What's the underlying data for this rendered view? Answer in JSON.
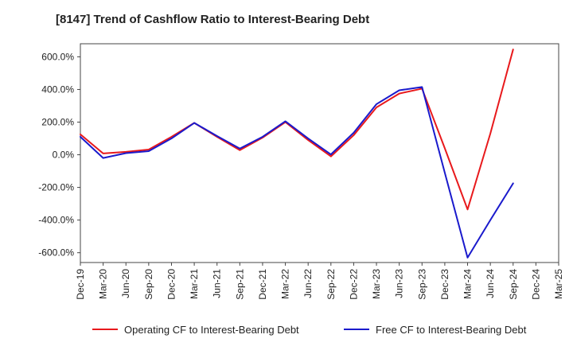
{
  "chart_data": {
    "type": "line",
    "title": "[8147]  Trend of Cashflow Ratio to Interest-Bearing Debt",
    "xlabel": "",
    "ylabel": "",
    "x": [
      "Dec-19",
      "Mar-20",
      "Jun-20",
      "Sep-20",
      "Dec-20",
      "Mar-21",
      "Jun-21",
      "Sep-21",
      "Dec-21",
      "Mar-22",
      "Jun-22",
      "Sep-22",
      "Dec-22",
      "Mar-23",
      "Jun-23",
      "Sep-23",
      "Dec-23",
      "Mar-24",
      "Jun-24",
      "Sep-24",
      "Dec-24",
      "Mar-25"
    ],
    "x_ticks": [
      "Dec-19",
      "Mar-20",
      "Jun-20",
      "Sep-20",
      "Dec-20",
      "Mar-21",
      "Jun-21",
      "Sep-21",
      "Dec-21",
      "Mar-22",
      "Jun-22",
      "Sep-22",
      "Dec-22",
      "Mar-23",
      "Jun-23",
      "Sep-23",
      "Dec-23",
      "Mar-24",
      "Jun-24",
      "Sep-24",
      "Dec-24",
      "Mar-25"
    ],
    "y_ticks": [
      600,
      400,
      200,
      0,
      -200,
      -400,
      -600
    ],
    "y_tick_labels": [
      "600.0%",
      "400.0%",
      "200.0%",
      "0.0%",
      "-200.0%",
      "-400.0%",
      "-600.0%"
    ],
    "ylim": [
      -660,
      680
    ],
    "grid": true,
    "legend_position": "bottom",
    "series": [
      {
        "name": "Operating CF to Interest-Bearing Debt",
        "color": "#e8191c",
        "values": [
          125,
          8,
          18,
          32,
          110,
          195,
          110,
          28,
          105,
          200,
          90,
          -10,
          120,
          290,
          375,
          405,
          40,
          -335,
          130,
          645,
          null,
          null
        ]
      },
      {
        "name": "Free CF to Interest-Bearing Debt",
        "color": "#1a1acc",
        "values": [
          110,
          -20,
          10,
          22,
          100,
          195,
          115,
          38,
          110,
          205,
          100,
          2,
          135,
          310,
          395,
          415,
          -110,
          -630,
          -400,
          -175,
          null,
          null
        ]
      }
    ]
  }
}
